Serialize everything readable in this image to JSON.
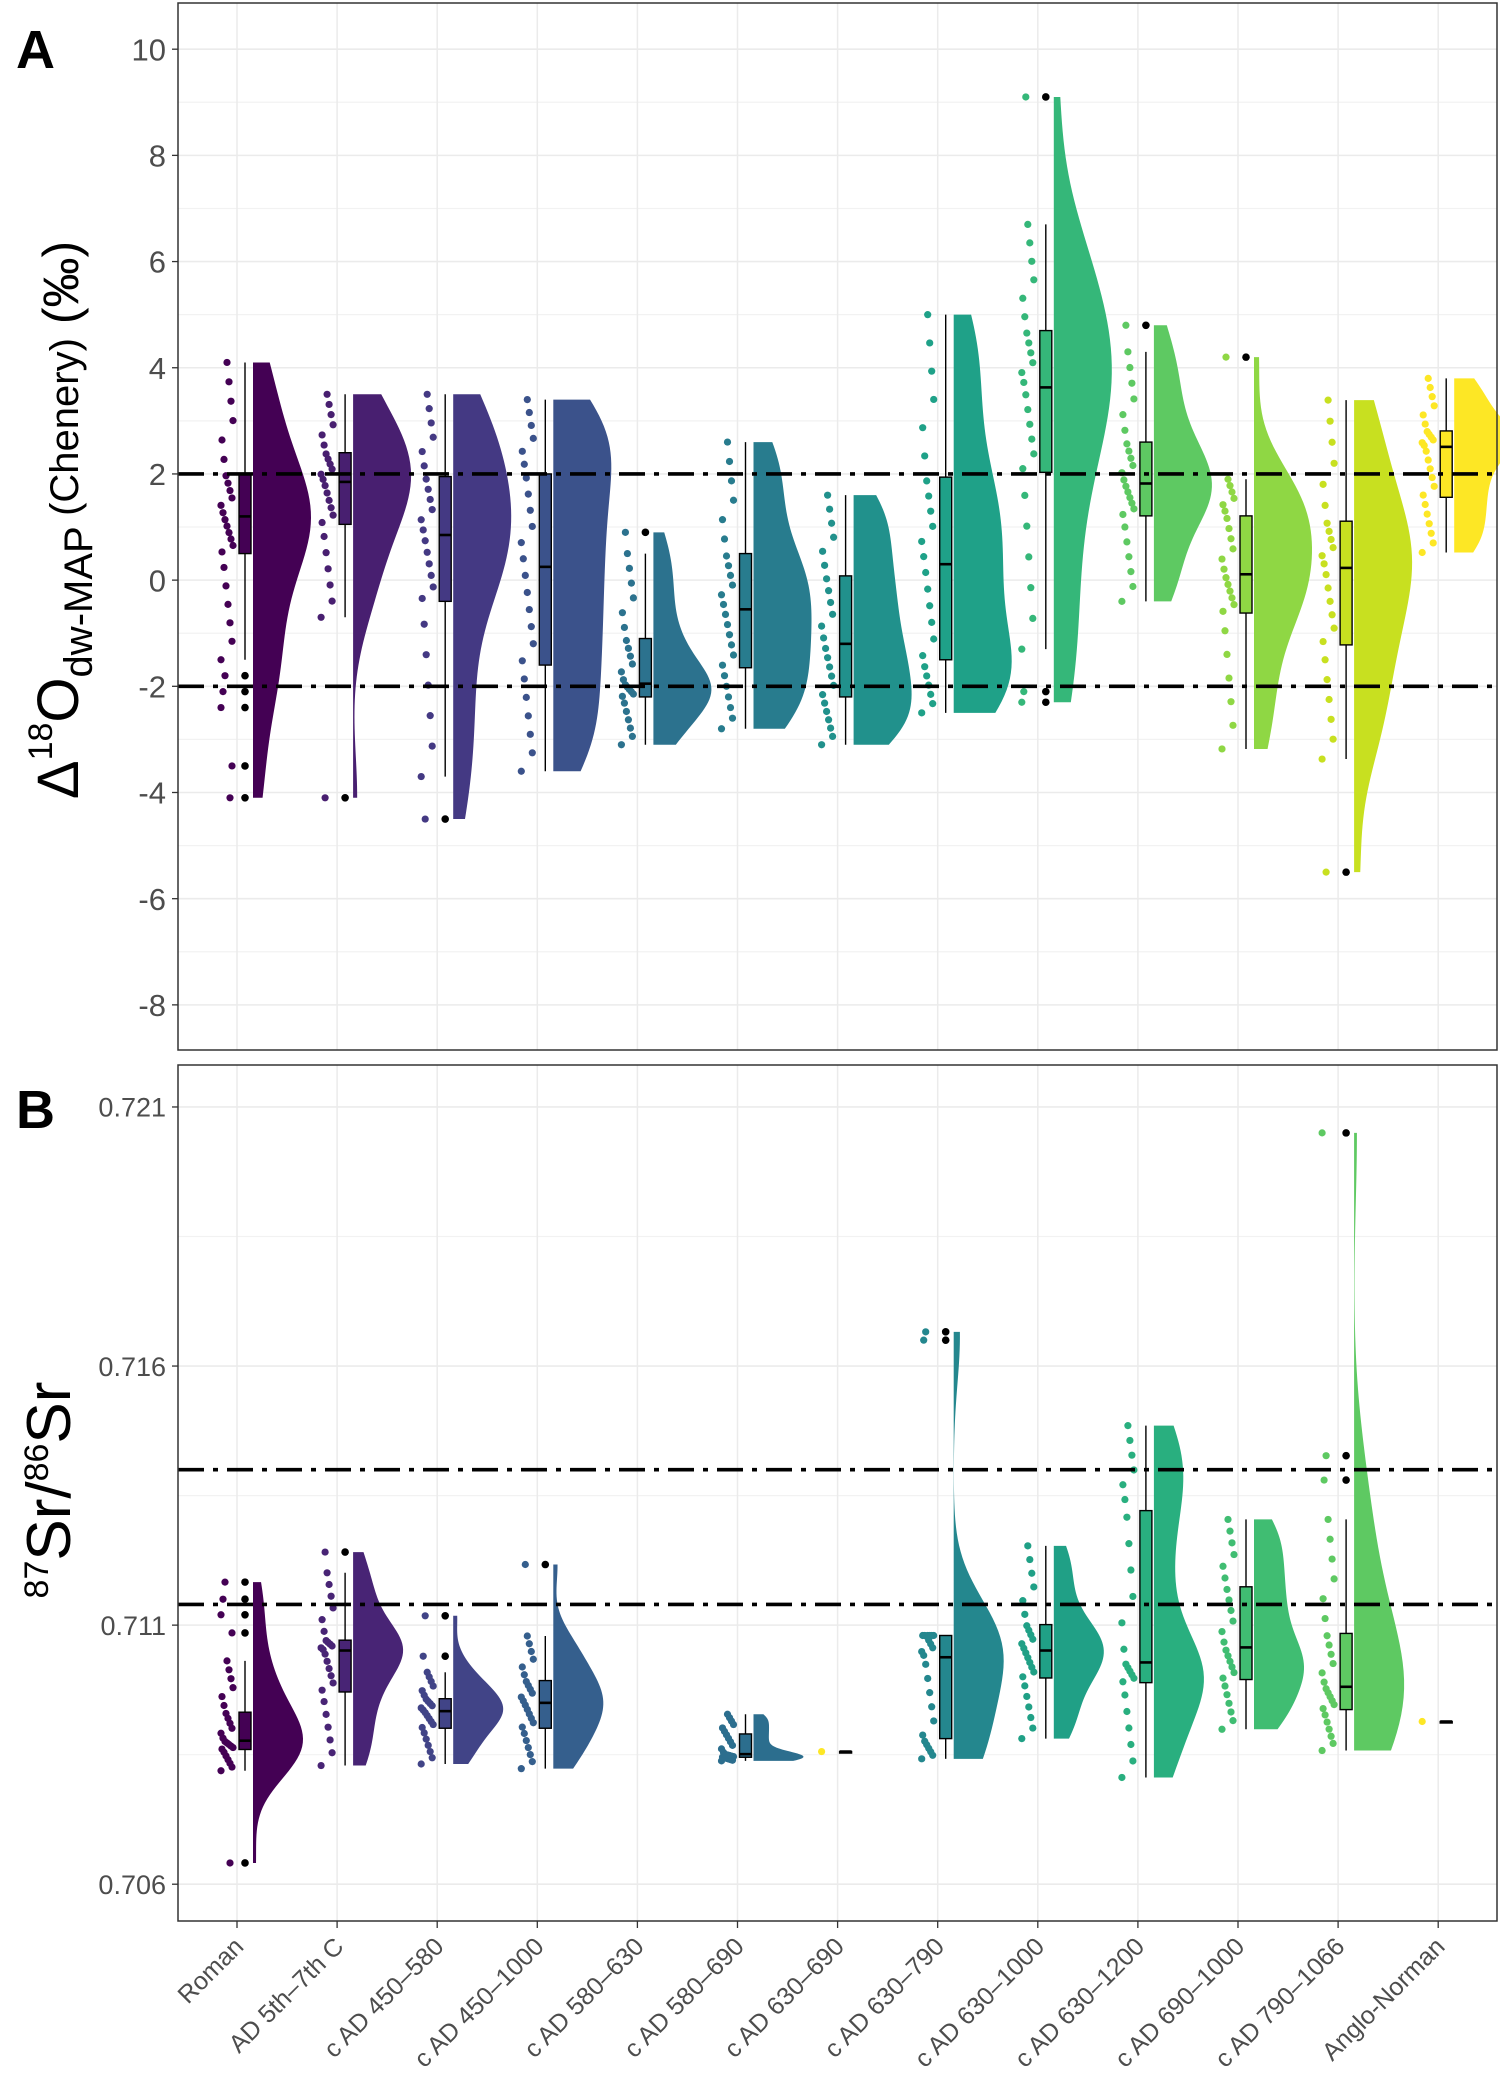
{
  "categories": [
    "Roman",
    "AD 5th–7th C",
    "c AD 450–580",
    "c AD 450–1000",
    "c AD 580–630",
    "c AD 580–690",
    "c AD 630–690",
    "c AD 630–790",
    "c AD 630–1000",
    "c AD 630–1200",
    "c AD 690–1000",
    "c AD 790–1066",
    "Anglo-Norman"
  ],
  "chart_data": [
    {
      "panel": "A",
      "type": "raincloud",
      "ylabel": {
        "delta": "Δ",
        "sup": "18",
        "base": "O",
        "sub": "dw-MAP",
        "suffix": " (Chenery)",
        "unit": " (‰)"
      },
      "ylim": [
        -8.85,
        10.87
      ],
      "yticks": [
        -8,
        -6,
        -4,
        -2,
        0,
        2,
        4,
        6,
        8,
        10
      ],
      "grid": true,
      "reference_lines": [
        2,
        -2
      ],
      "groups": [
        {
          "category": "Roman",
          "color": "#440154",
          "q1": 0.5,
          "median": 1.2,
          "q3": 2.0,
          "whisker_low": -1.5,
          "whisker_high": 4.1,
          "outliers": [
            -1.8,
            -2.1,
            -2.4,
            -3.5,
            -4.1
          ]
        },
        {
          "category": "AD 5th–7th C",
          "color": "#481f70",
          "q1": 1.05,
          "median": 1.85,
          "q3": 2.4,
          "whisker_low": -0.7,
          "whisker_high": 3.5,
          "outliers": [
            -4.1
          ]
        },
        {
          "category": "c AD 450–580",
          "color": "#443983",
          "q1": -0.4,
          "median": 0.85,
          "q3": 1.95,
          "whisker_low": -3.7,
          "whisker_high": 3.5,
          "outliers": [
            -4.5
          ]
        },
        {
          "category": "c AD 450–1000",
          "color": "#3b528b",
          "q1": -1.6,
          "median": 0.25,
          "q3": 2.0,
          "whisker_low": -3.6,
          "whisker_high": 3.4,
          "outliers": []
        },
        {
          "category": "c AD 580–630",
          "color": "#2c728e",
          "q1": -2.2,
          "median": -1.95,
          "q3": -1.1,
          "whisker_low": -3.1,
          "whisker_high": 0.5,
          "outliers": [
            0.9
          ]
        },
        {
          "category": "c AD 580–690",
          "color": "#287c8e",
          "q1": -1.65,
          "median": -0.55,
          "q3": 0.5,
          "whisker_low": -2.8,
          "whisker_high": 2.6,
          "outliers": []
        },
        {
          "category": "c AD 630–690",
          "color": "#21918c",
          "q1": -2.2,
          "median": -1.2,
          "q3": 0.08,
          "whisker_low": -3.1,
          "whisker_high": 1.6,
          "outliers": []
        },
        {
          "category": "c AD 630–790",
          "color": "#1fa188",
          "q1": -1.5,
          "median": 0.3,
          "q3": 1.94,
          "whisker_low": -2.5,
          "whisker_high": 5.0,
          "outliers": []
        },
        {
          "category": "c AD 630–1000",
          "color": "#35b779",
          "q1": 2.03,
          "median": 3.63,
          "q3": 4.7,
          "whisker_low": -1.3,
          "whisker_high": 6.7,
          "outliers": [
            9.1,
            -2.1,
            -2.3
          ]
        },
        {
          "category": "c AD 630–1200",
          "color": "#5ec962",
          "q1": 1.21,
          "median": 1.82,
          "q3": 2.6,
          "whisker_low": -0.4,
          "whisker_high": 4.3,
          "outliers": [
            4.8
          ]
        },
        {
          "category": "c AD 690–1000",
          "color": "#8fd744",
          "q1": -0.62,
          "median": 0.11,
          "q3": 1.21,
          "whisker_low": -3.18,
          "whisker_high": 1.9,
          "outliers": [
            4.2
          ]
        },
        {
          "category": "c AD 790–1066",
          "color": "#c8e020",
          "q1": -1.22,
          "median": 0.23,
          "q3": 1.11,
          "whisker_low": -3.37,
          "whisker_high": 3.39,
          "outliers": [
            -5.5
          ]
        },
        {
          "category": "Anglo-Norman",
          "color": "#fde725",
          "q1": 1.56,
          "median": 2.51,
          "q3": 2.81,
          "whisker_low": 0.52,
          "whisker_high": 3.8,
          "outliers": []
        }
      ]
    },
    {
      "panel": "B",
      "type": "raincloud",
      "ylabel": {
        "sup1": "87",
        "t1": "Sr/",
        "sup2": "86",
        "t2": "Sr"
      },
      "ylim": [
        0.70529,
        0.72181
      ],
      "yticks": [
        0.706,
        0.711,
        0.716,
        0.721
      ],
      "grid": true,
      "reference_lines": [
        0.714,
        0.7114
      ],
      "groups": [
        {
          "category": "Roman",
          "color": "#440154",
          "q1": 0.7086,
          "median": 0.70877,
          "q3": 0.70932,
          "whisker_low": 0.70819,
          "whisker_high": 0.71031,
          "outliers": [
            0.71183,
            0.7115,
            0.7112,
            0.71085,
            0.70641
          ]
        },
        {
          "category": "AD 5th–7th C",
          "color": "#482475",
          "q1": 0.70971,
          "median": 0.71051,
          "q3": 0.71071,
          "whisker_low": 0.70829,
          "whisker_high": 0.71201,
          "outliers": [
            0.71241
          ]
        },
        {
          "category": "c AD 450–580",
          "color": "#414487",
          "q1": 0.70901,
          "median": 0.70934,
          "q3": 0.70958,
          "whisker_low": 0.70832,
          "whisker_high": 0.71009,
          "outliers": [
            0.71118,
            0.7104
          ]
        },
        {
          "category": "c AD 450–1000",
          "color": "#355f8d",
          "q1": 0.70901,
          "median": 0.7095,
          "q3": 0.70993,
          "whisker_low": 0.70823,
          "whisker_high": 0.71079,
          "outliers": [
            0.71217
          ]
        },
        null,
        {
          "category": "c AD 580–690",
          "color": "#2c6e8e",
          "q1": 0.70845,
          "median": 0.70851,
          "q3": 0.7089,
          "whisker_low": 0.70838,
          "whisker_high": 0.70928,
          "outliers": []
        },
        {
          "category": "c AD 630–690",
          "color": "#fde725",
          "q1": 0.70856,
          "median": 0.70856,
          "q3": 0.70856,
          "whisker_low": 0.70856,
          "whisker_high": 0.70856,
          "outliers": []
        },
        {
          "category": "c AD 630–790",
          "color": "#24878e",
          "q1": 0.70881,
          "median": 0.71038,
          "q3": 0.7108,
          "whisker_low": 0.70842,
          "whisker_high": 0.7108,
          "outliers": [
            0.71666,
            0.7165
          ]
        },
        {
          "category": "c AD 630–1000",
          "color": "#20a086",
          "q1": 0.70998,
          "median": 0.71051,
          "q3": 0.71101,
          "whisker_low": 0.70881,
          "whisker_high": 0.71253,
          "outliers": []
        },
        {
          "category": "c AD 630–1200",
          "color": "#29af7f",
          "q1": 0.70989,
          "median": 0.71028,
          "q3": 0.71321,
          "whisker_low": 0.70806,
          "whisker_high": 0.71485,
          "outliers": []
        },
        {
          "category": "c AD 690–1000",
          "color": "#40bd72",
          "q1": 0.70995,
          "median": 0.71057,
          "q3": 0.71174,
          "whisker_low": 0.70899,
          "whisker_high": 0.71304,
          "outliers": []
        },
        {
          "category": "c AD 790–1066",
          "color": "#5ec962",
          "q1": 0.70937,
          "median": 0.70981,
          "q3": 0.71084,
          "whisker_low": 0.70858,
          "whisker_high": 0.71304,
          "outliers": [
            0.71427,
            0.7138,
            0.7205
          ]
        },
        {
          "category": "Anglo-Norman",
          "color": "#fde725",
          "q1": 0.70914,
          "median": 0.70914,
          "q3": 0.70914,
          "whisker_low": 0.70914,
          "whisker_high": 0.70914,
          "outliers": []
        }
      ]
    }
  ],
  "panel_labels": [
    "A",
    "B"
  ]
}
